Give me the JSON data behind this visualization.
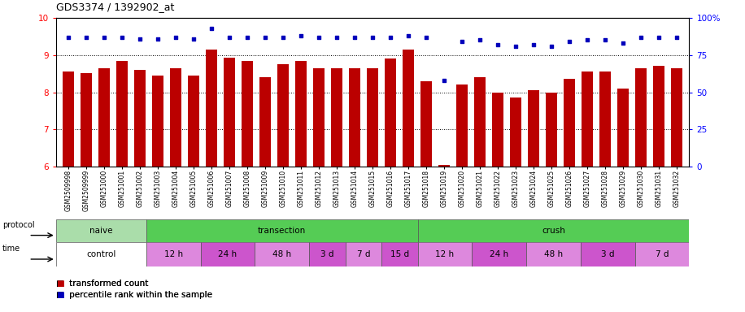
{
  "title": "GDS3374 / 1392902_at",
  "samples": [
    "GSM2509998",
    "GSM2509999",
    "GSM251000",
    "GSM251001",
    "GSM251002",
    "GSM251003",
    "GSM251004",
    "GSM251005",
    "GSM251006",
    "GSM251007",
    "GSM251008",
    "GSM251009",
    "GSM251010",
    "GSM251011",
    "GSM251012",
    "GSM251013",
    "GSM251014",
    "GSM251015",
    "GSM251016",
    "GSM251017",
    "GSM251018",
    "GSM251019",
    "GSM251020",
    "GSM251021",
    "GSM251022",
    "GSM251023",
    "GSM251024",
    "GSM251025",
    "GSM251026",
    "GSM251027",
    "GSM251028",
    "GSM251029",
    "GSM251030",
    "GSM251031",
    "GSM251032"
  ],
  "bar_values": [
    8.55,
    8.52,
    8.65,
    8.85,
    8.6,
    8.45,
    8.65,
    8.45,
    9.15,
    8.92,
    8.85,
    8.4,
    8.75,
    8.85,
    8.65,
    8.65,
    8.65,
    8.65,
    8.9,
    9.15,
    8.3,
    6.05,
    8.2,
    8.4,
    8.0,
    7.85,
    8.05,
    8.0,
    8.35,
    8.55,
    8.55,
    8.1,
    8.65,
    8.7,
    8.65
  ],
  "dot_values": [
    87,
    87,
    87,
    87,
    86,
    86,
    87,
    86,
    93,
    87,
    87,
    87,
    87,
    88,
    87,
    87,
    87,
    87,
    87,
    88,
    87,
    58,
    84,
    85,
    82,
    81,
    82,
    81,
    84,
    85,
    85,
    83,
    87,
    87,
    87
  ],
  "ylim_left": [
    6,
    10
  ],
  "ylim_right": [
    0,
    100
  ],
  "yticks_left": [
    6,
    7,
    8,
    9,
    10
  ],
  "yticks_right": [
    0,
    25,
    50,
    75,
    100
  ],
  "bar_color": "#bb0000",
  "dot_color": "#0000bb",
  "bar_bottom": 6,
  "protocol_groups": [
    {
      "label": "naive",
      "start": 0,
      "end": 4,
      "color": "#aaddaa"
    },
    {
      "label": "transection",
      "start": 5,
      "end": 19,
      "color": "#55cc55"
    },
    {
      "label": "crush",
      "start": 20,
      "end": 34,
      "color": "#55cc55"
    }
  ],
  "time_groups": [
    {
      "label": "control",
      "start": 0,
      "end": 4,
      "color": "#ffffff"
    },
    {
      "label": "12 h",
      "start": 5,
      "end": 7,
      "color": "#dd88dd"
    },
    {
      "label": "24 h",
      "start": 8,
      "end": 10,
      "color": "#cc55cc"
    },
    {
      "label": "48 h",
      "start": 11,
      "end": 13,
      "color": "#dd88dd"
    },
    {
      "label": "3 d",
      "start": 14,
      "end": 15,
      "color": "#cc55cc"
    },
    {
      "label": "7 d",
      "start": 16,
      "end": 17,
      "color": "#dd88dd"
    },
    {
      "label": "15 d",
      "start": 18,
      "end": 19,
      "color": "#cc55cc"
    },
    {
      "label": "12 h",
      "start": 20,
      "end": 22,
      "color": "#dd88dd"
    },
    {
      "label": "24 h",
      "start": 23,
      "end": 25,
      "color": "#cc55cc"
    },
    {
      "label": "48 h",
      "start": 26,
      "end": 28,
      "color": "#dd88dd"
    },
    {
      "label": "3 d",
      "start": 29,
      "end": 31,
      "color": "#cc55cc"
    },
    {
      "label": "7 d",
      "start": 32,
      "end": 34,
      "color": "#dd88dd"
    }
  ],
  "legend_items": [
    {
      "label": "transformed count",
      "color": "#bb0000"
    },
    {
      "label": "percentile rank within the sample",
      "color": "#0000bb"
    }
  ]
}
